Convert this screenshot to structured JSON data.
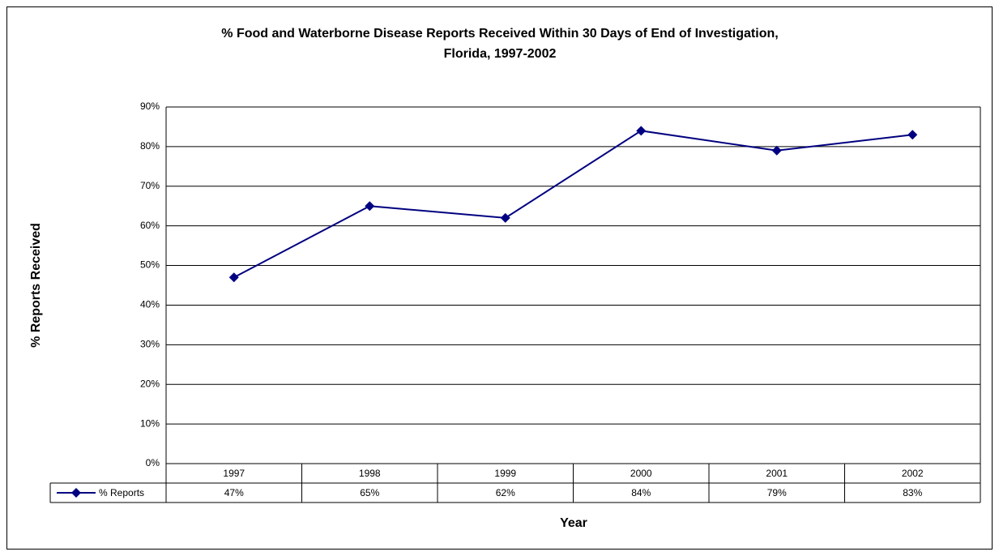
{
  "chart_data": {
    "type": "line",
    "title": [
      "% Food and Waterborne Disease Reports Received Within 30 Days of End of Investigation,",
      "Florida, 1997-2002"
    ],
    "x_label": "Year",
    "y_label": "% Reports Received",
    "categories": [
      "1997",
      "1998",
      "1999",
      "2000",
      "2001",
      "2002"
    ],
    "series": [
      {
        "name": "% Reports",
        "color": "#000080",
        "values": [
          47,
          65,
          62,
          84,
          79,
          83
        ],
        "value_labels": [
          "47%",
          "65%",
          "62%",
          "84%",
          "79%",
          "83%"
        ]
      }
    ],
    "ylim": [
      0,
      90
    ],
    "yticks": [
      {
        "value": 0,
        "label": "0%"
      },
      {
        "value": 10,
        "label": "10%"
      },
      {
        "value": 20,
        "label": "20%"
      },
      {
        "value": 30,
        "label": "30%"
      },
      {
        "value": 40,
        "label": "40%"
      },
      {
        "value": 50,
        "label": "50%"
      },
      {
        "value": 60,
        "label": "60%"
      },
      {
        "value": 70,
        "label": "70%"
      },
      {
        "value": 80,
        "label": "80%"
      },
      {
        "value": 90,
        "label": "90%"
      }
    ],
    "grid": true
  }
}
